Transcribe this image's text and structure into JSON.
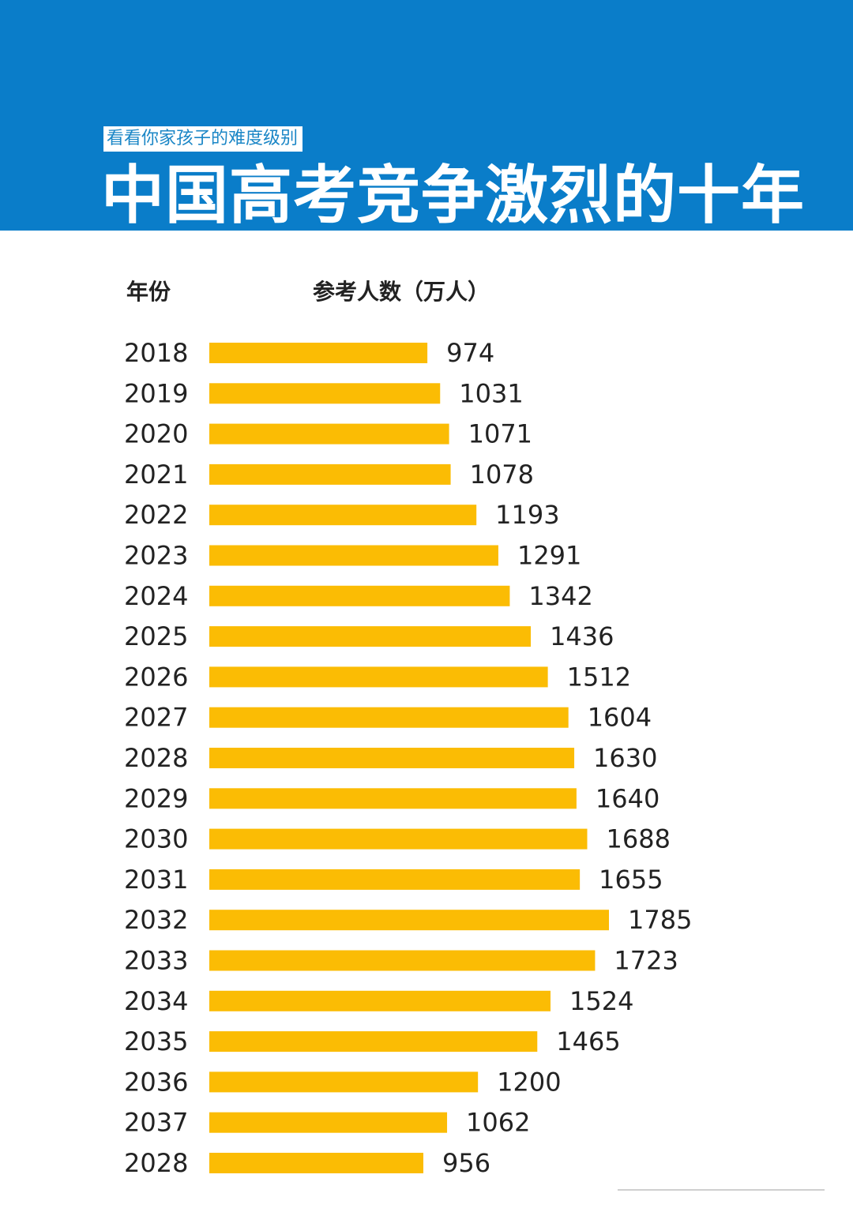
{
  "header": {
    "subtitle": "看看你家孩子的难度级别",
    "title": "中国高考竞争激烈的十年"
  },
  "table_headers": {
    "year": "年份",
    "value": "参考人数（万人）"
  },
  "colors": {
    "banner": "#0a7dc9",
    "bar": "#fbbc04",
    "text": "#222222"
  },
  "chart_data": {
    "type": "bar",
    "orientation": "horizontal",
    "categories": [
      "2018",
      "2019",
      "2020",
      "2021",
      "2022",
      "2023",
      "2024",
      "2025",
      "2026",
      "2027",
      "2028",
      "2029",
      "2030",
      "2031",
      "2032",
      "2033",
      "2034",
      "2035",
      "2036",
      "2037",
      "2028"
    ],
    "values": [
      974,
      1031,
      1071,
      1078,
      1193,
      1291,
      1342,
      1436,
      1512,
      1604,
      1630,
      1640,
      1688,
      1655,
      1785,
      1723,
      1524,
      1465,
      1200,
      1062,
      956
    ],
    "title": "中国高考竞争激烈的十年",
    "subtitle": "看看你家孩子的难度级别",
    "xlabel": "参考人数（万人）",
    "ylabel": "年份",
    "grid": false,
    "legend": "none"
  }
}
